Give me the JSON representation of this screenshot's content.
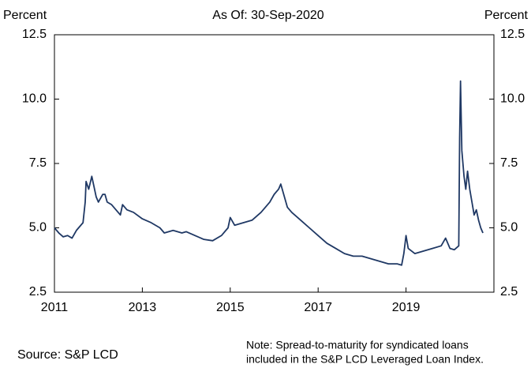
{
  "chart_data": {
    "type": "line",
    "title": "As Of: 30-Sep-2020",
    "ylabel": "Percent",
    "y2label": "Percent",
    "source": "Source: S&P LCD",
    "note": [
      "Note: Spread-to-maturity for syndicated loans",
      "included in the S&P LCD Leveraged Loan Index."
    ],
    "x": [
      2011.0,
      2011.1,
      2011.2,
      2011.3,
      2011.4,
      2011.5,
      2011.6,
      2011.65,
      2011.7,
      2011.72,
      2011.78,
      2011.85,
      2011.9,
      2011.95,
      2012.0,
      2012.1,
      2012.15,
      2012.2,
      2012.3,
      2012.4,
      2012.5,
      2012.55,
      2012.65,
      2012.8,
      2013.0,
      2013.2,
      2013.4,
      2013.5,
      2013.7,
      2013.9,
      2014.0,
      2014.2,
      2014.4,
      2014.6,
      2014.8,
      2014.95,
      2015.0,
      2015.1,
      2015.3,
      2015.5,
      2015.7,
      2015.9,
      2016.0,
      2016.1,
      2016.15,
      2016.2,
      2016.3,
      2016.4,
      2016.6,
      2016.8,
      2017.0,
      2017.2,
      2017.4,
      2017.6,
      2017.8,
      2018.0,
      2018.2,
      2018.4,
      2018.6,
      2018.8,
      2018.9,
      2018.95,
      2019.0,
      2019.05,
      2019.2,
      2019.4,
      2019.6,
      2019.8,
      2019.9,
      2020.0,
      2020.1,
      2020.2,
      2020.22,
      2020.24,
      2020.27,
      2020.32,
      2020.36,
      2020.4,
      2020.45,
      2020.5,
      2020.55,
      2020.6,
      2020.65,
      2020.7,
      2020.75
    ],
    "series": [
      {
        "color": "#1f3864",
        "values": [
          5.0,
          4.8,
          4.65,
          4.7,
          4.6,
          4.9,
          5.1,
          5.2,
          6.0,
          6.8,
          6.5,
          7.0,
          6.6,
          6.2,
          6.0,
          6.3,
          6.3,
          6.0,
          5.9,
          5.7,
          5.5,
          5.9,
          5.7,
          5.6,
          5.35,
          5.2,
          5.0,
          4.8,
          4.9,
          4.8,
          4.85,
          4.7,
          4.55,
          4.5,
          4.7,
          5.0,
          5.4,
          5.1,
          5.2,
          5.3,
          5.6,
          6.0,
          6.3,
          6.5,
          6.7,
          6.4,
          5.8,
          5.6,
          5.3,
          5.0,
          4.7,
          4.4,
          4.2,
          4.0,
          3.9,
          3.9,
          3.8,
          3.7,
          3.6,
          3.6,
          3.55,
          4.0,
          4.7,
          4.2,
          4.0,
          4.1,
          4.2,
          4.3,
          4.6,
          4.2,
          4.15,
          4.3,
          8.5,
          10.7,
          8.0,
          7.0,
          6.5,
          7.2,
          6.5,
          6.0,
          5.5,
          5.7,
          5.3,
          5.0,
          4.8
        ]
      }
    ],
    "xlim": [
      2011,
      2021
    ],
    "xticks": [
      2011,
      2013,
      2015,
      2017,
      2019
    ],
    "ylim": [
      2.5,
      12.5
    ],
    "yticks": [
      2.5,
      {
        "value": 5,
        "label": "5.0"
      },
      7.5,
      {
        "value": 10,
        "label": "10.0"
      },
      12.5
    ],
    "y2lim": [
      2.5,
      12.5
    ],
    "y2ticks": [
      2.5,
      {
        "value": 5,
        "label": "5.0"
      },
      7.5,
      {
        "value": 10,
        "label": "10.0"
      },
      12.5
    ]
  }
}
